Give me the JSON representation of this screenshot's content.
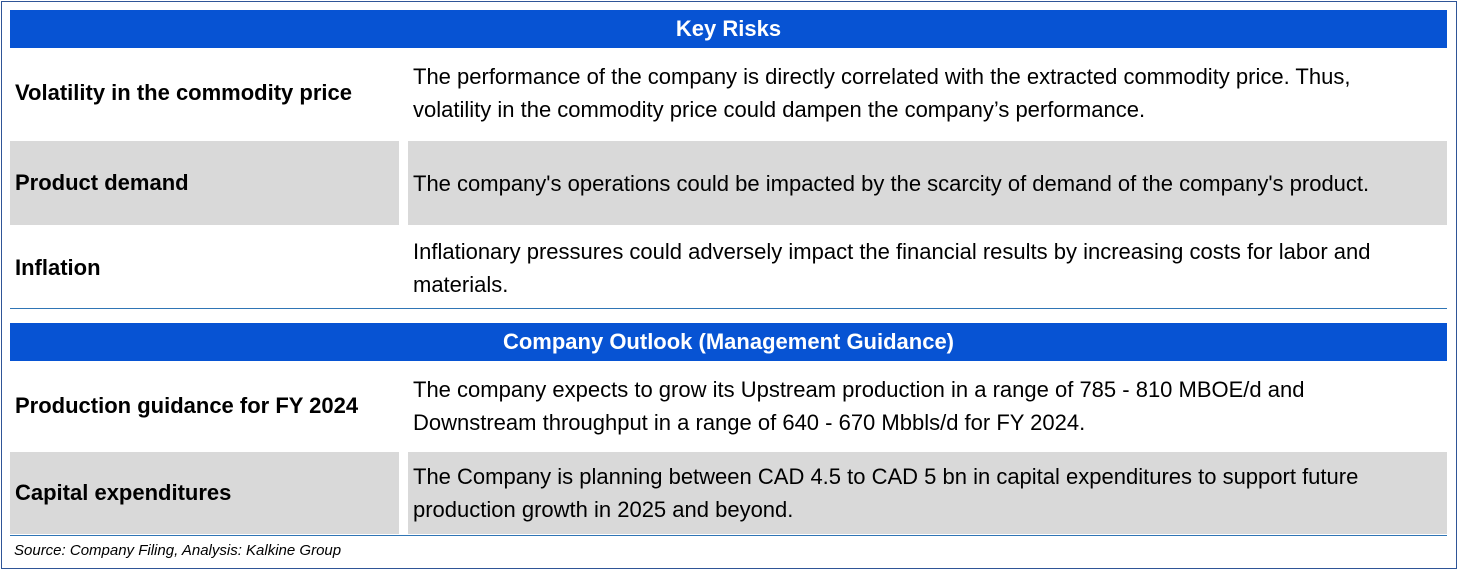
{
  "key_risks": {
    "title": "Key Risks",
    "rows": [
      {
        "label": "Volatility in the commodity price",
        "description": "The performance of the company is directly correlated with the extracted commodity price. Thus, volatility in the commodity price could dampen the company’s performance."
      },
      {
        "label": "Product demand",
        "description": "The company's operations could be impacted by the scarcity of demand of the company's product."
      },
      {
        "label": "Inflation",
        "description": "Inflationary pressures could adversely impact the financial results by increasing costs for labor and materials."
      }
    ]
  },
  "outlook": {
    "title": "Company Outlook (Management Guidance)",
    "rows": [
      {
        "label": "Production guidance for FY 2024",
        "description": "The company expects to grow its Upstream production in a range of 785 - 810 MBOE/d and Downstream throughput in a range of 640 - 670 Mbbls/d for FY 2024."
      },
      {
        "label": "Capital expenditures",
        "description": "The Company is planning between CAD 4.5 to CAD 5 bn in capital expenditures to support future production growth in 2025 and beyond."
      }
    ]
  },
  "source": "Source: Company Filing, Analysis: Kalkine Group"
}
